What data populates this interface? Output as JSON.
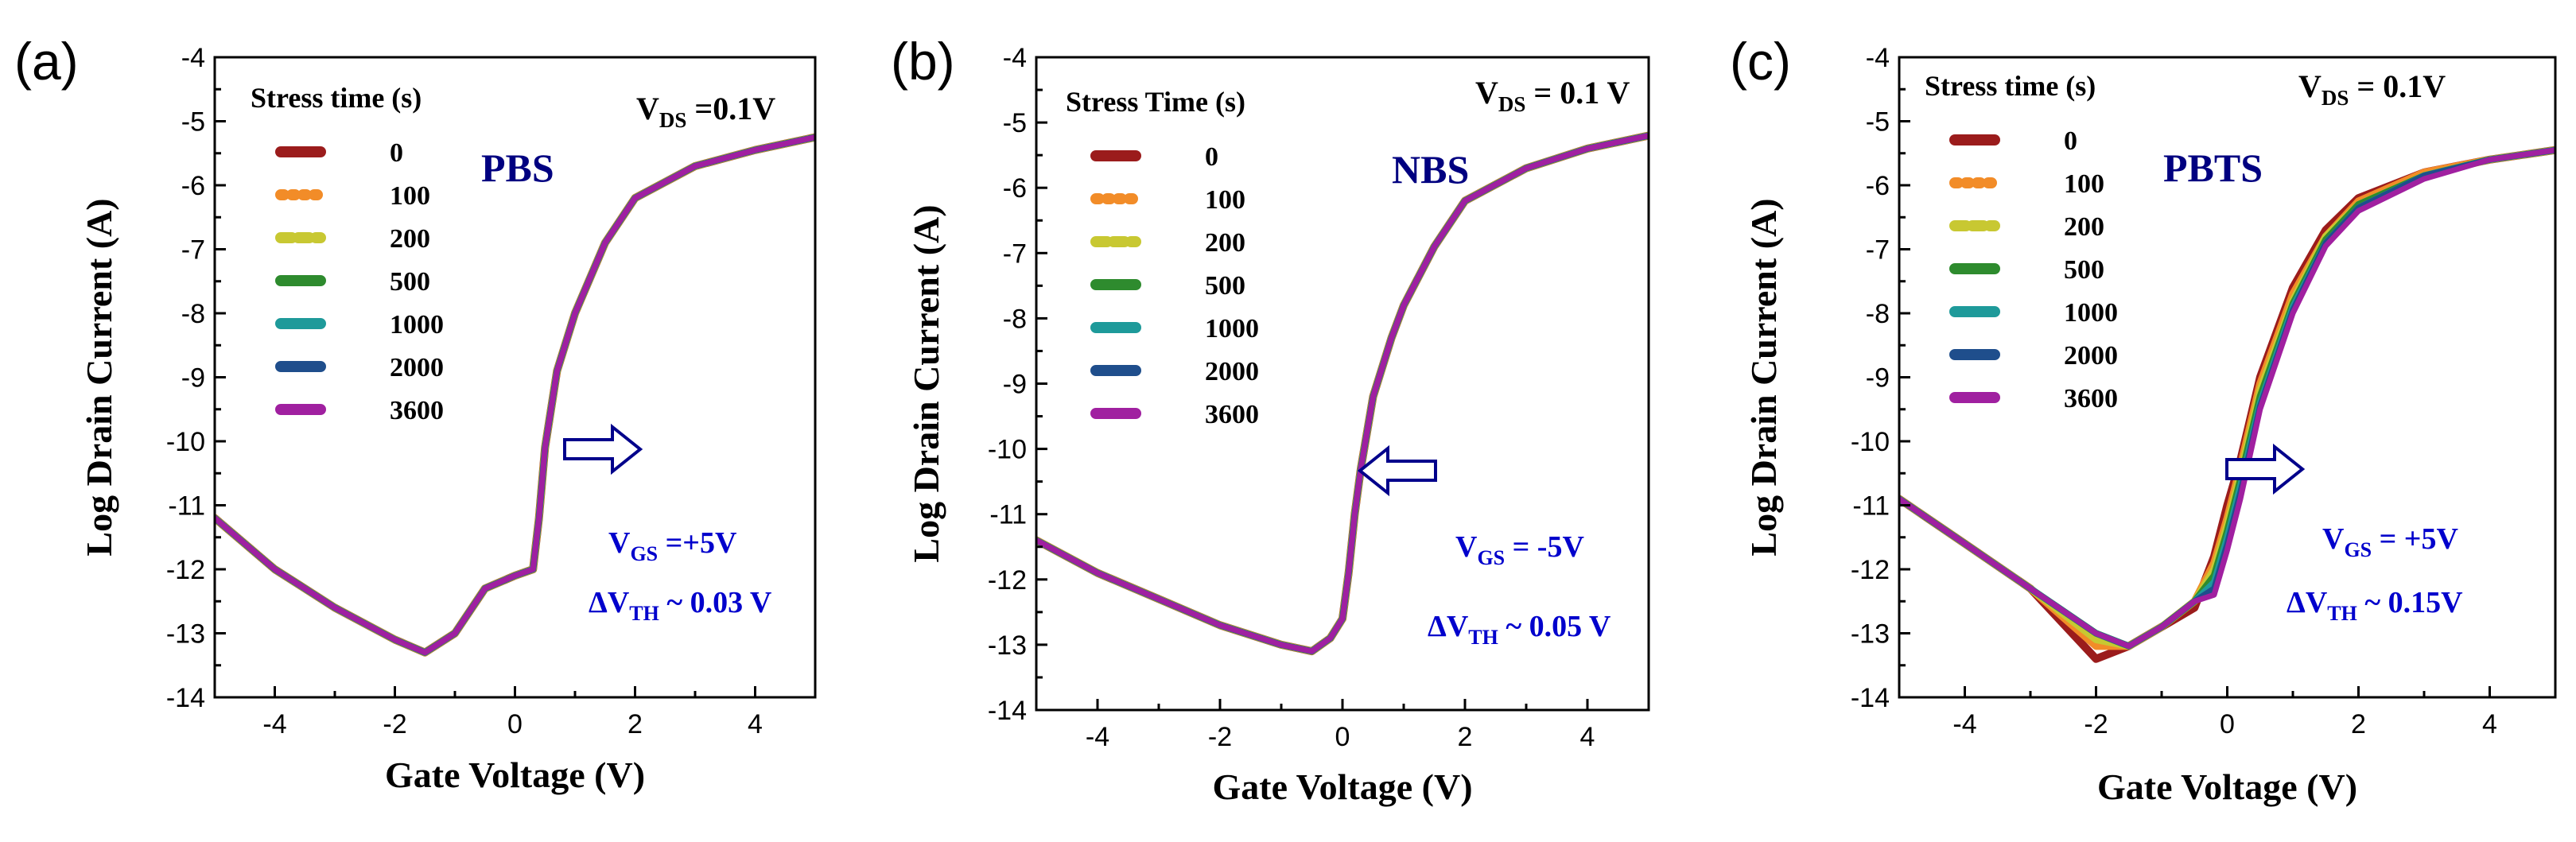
{
  "figure": {
    "panels": [
      {
        "letter": "(a)",
        "stress_name": "PBS",
        "vds_main": "V",
        "vds_sub": "DS",
        "vds_value": " =0.1V",
        "legend_title": "Stress time (s)",
        "vgs_main": "V",
        "vgs_sub": "GS",
        "vgs_value": " =+5V",
        "dvth_main": "ΔV",
        "dvth_sub": "TH",
        "dvth_value": " ~ 0.03 V",
        "shift_direction": "right"
      },
      {
        "letter": "(b)",
        "stress_name": "NBS",
        "vds_main": "V",
        "vds_sub": "DS",
        "vds_value": " = 0.1 V",
        "legend_title": "Stress Time (s)",
        "vgs_main": "V",
        "vgs_sub": "GS",
        "vgs_value": " = -5V",
        "dvth_main": "ΔV",
        "dvth_sub": "TH",
        "dvth_value": " ~ 0.05 V",
        "shift_direction": "left"
      },
      {
        "letter": "(c)",
        "stress_name": "PBTS",
        "vds_main": "V",
        "vds_sub": "DS",
        "vds_value": " = 0.1V",
        "legend_title": "Stress time (s)",
        "vgs_main": "V",
        "vgs_sub": "GS",
        "vgs_value": " = +5V",
        "dvth_main": "ΔV",
        "dvth_sub": "TH",
        "dvth_value": " ~ 0.15V",
        "shift_direction": "right"
      }
    ]
  },
  "colors": {
    "series": [
      "#9b1c1c",
      "#f28c28",
      "#c8c832",
      "#2e8b2e",
      "#1e9a9a",
      "#1f4e8c",
      "#a020a0"
    ],
    "annotation": "#0000cc",
    "stress_name": "#000080",
    "arrow": "#00008b"
  },
  "chart_data": [
    {
      "type": "line",
      "title": "PBS",
      "xlabel": "Gate Voltage (V)",
      "ylabel": "Log Drain Current (A)",
      "xlim": [
        -5,
        5
      ],
      "ylim": [
        -14,
        -4
      ],
      "xticks": [
        -4,
        -2,
        0,
        2,
        4
      ],
      "yticks": [
        -4,
        -5,
        -6,
        -7,
        -8,
        -9,
        -10,
        -11,
        -12,
        -13,
        -14
      ],
      "legend_title": "Stress time (s)",
      "series_names": [
        "0",
        "100",
        "200",
        "500",
        "1000",
        "2000",
        "3600"
      ],
      "x": [
        -5,
        -4,
        -3,
        -2,
        -1.5,
        -1,
        -0.5,
        0,
        0.3,
        0.4,
        0.5,
        0.7,
        1,
        1.5,
        2,
        3,
        4,
        5
      ],
      "series": [
        {
          "name": "0",
          "values": [
            -11.2,
            -12.0,
            -12.6,
            -13.1,
            -13.3,
            -13.0,
            -12.3,
            -12.1,
            -12.0,
            -11.2,
            -10.1,
            -8.9,
            -8.0,
            -6.9,
            -6.2,
            -5.7,
            -5.45,
            -5.25
          ]
        },
        {
          "name": "100",
          "values": [
            -11.2,
            -12.0,
            -12.6,
            -13.1,
            -13.3,
            -13.0,
            -12.3,
            -12.1,
            -12.0,
            -11.2,
            -10.1,
            -8.9,
            -8.0,
            -6.9,
            -6.2,
            -5.7,
            -5.45,
            -5.25
          ]
        },
        {
          "name": "200",
          "values": [
            -11.2,
            -12.0,
            -12.6,
            -13.1,
            -13.3,
            -13.0,
            -12.3,
            -12.1,
            -12.0,
            -11.2,
            -10.1,
            -8.9,
            -8.0,
            -6.9,
            -6.2,
            -5.7,
            -5.45,
            -5.25
          ]
        },
        {
          "name": "500",
          "values": [
            -11.2,
            -12.0,
            -12.6,
            -13.1,
            -13.3,
            -13.0,
            -12.3,
            -12.1,
            -12.0,
            -11.2,
            -10.1,
            -8.9,
            -8.0,
            -6.9,
            -6.2,
            -5.7,
            -5.45,
            -5.25
          ]
        },
        {
          "name": "1000",
          "values": [
            -11.2,
            -12.0,
            -12.6,
            -13.1,
            -13.3,
            -13.0,
            -12.3,
            -12.1,
            -12.0,
            -11.2,
            -10.1,
            -8.9,
            -8.0,
            -6.9,
            -6.2,
            -5.7,
            -5.45,
            -5.25
          ]
        },
        {
          "name": "2000",
          "values": [
            -11.2,
            -12.0,
            -12.6,
            -13.1,
            -13.3,
            -13.0,
            -12.3,
            -12.1,
            -12.0,
            -11.2,
            -10.1,
            -8.9,
            -8.0,
            -6.9,
            -6.2,
            -5.7,
            -5.45,
            -5.25
          ]
        },
        {
          "name": "3600",
          "values": [
            -11.2,
            -12.0,
            -12.6,
            -13.1,
            -13.3,
            -13.0,
            -12.3,
            -12.1,
            -12.0,
            -11.2,
            -10.1,
            -8.9,
            -8.0,
            -6.9,
            -6.2,
            -5.7,
            -5.45,
            -5.25
          ]
        }
      ]
    },
    {
      "type": "line",
      "title": "NBS",
      "xlabel": "Gate Voltage (V)",
      "ylabel": "Log Drain Current (A)",
      "xlim": [
        -5,
        5
      ],
      "ylim": [
        -14,
        -4
      ],
      "xticks": [
        -4,
        -2,
        0,
        2,
        4
      ],
      "yticks": [
        -4,
        -5,
        -6,
        -7,
        -8,
        -9,
        -10,
        -11,
        -12,
        -13,
        -14
      ],
      "legend_title": "Stress Time (s)",
      "series_names": [
        "0",
        "100",
        "200",
        "500",
        "1000",
        "2000",
        "3600"
      ],
      "x": [
        -5,
        -4,
        -3,
        -2,
        -1,
        -0.5,
        -0.2,
        0,
        0.1,
        0.2,
        0.3,
        0.5,
        0.8,
        1,
        1.5,
        2,
        3,
        4,
        5
      ],
      "series": [
        {
          "name": "0",
          "values": [
            -11.4,
            -11.9,
            -12.3,
            -12.7,
            -13.0,
            -13.1,
            -12.9,
            -12.6,
            -11.9,
            -11.0,
            -10.3,
            -9.2,
            -8.3,
            -7.8,
            -6.9,
            -6.2,
            -5.7,
            -5.4,
            -5.2
          ]
        },
        {
          "name": "100",
          "values": [
            -11.4,
            -11.9,
            -12.3,
            -12.7,
            -13.0,
            -13.1,
            -12.9,
            -12.6,
            -11.9,
            -11.0,
            -10.3,
            -9.2,
            -8.3,
            -7.8,
            -6.9,
            -6.2,
            -5.7,
            -5.4,
            -5.2
          ]
        },
        {
          "name": "200",
          "values": [
            -11.4,
            -11.9,
            -12.3,
            -12.7,
            -13.0,
            -13.1,
            -12.9,
            -12.6,
            -11.9,
            -11.0,
            -10.3,
            -9.2,
            -8.3,
            -7.8,
            -6.9,
            -6.2,
            -5.7,
            -5.4,
            -5.2
          ]
        },
        {
          "name": "500",
          "values": [
            -11.4,
            -11.9,
            -12.3,
            -12.7,
            -13.0,
            -13.1,
            -12.9,
            -12.6,
            -11.9,
            -11.0,
            -10.3,
            -9.2,
            -8.3,
            -7.8,
            -6.9,
            -6.2,
            -5.7,
            -5.4,
            -5.2
          ]
        },
        {
          "name": "1000",
          "values": [
            -11.4,
            -11.9,
            -12.3,
            -12.7,
            -13.0,
            -13.1,
            -12.9,
            -12.6,
            -11.9,
            -11.0,
            -10.3,
            -9.2,
            -8.3,
            -7.8,
            -6.9,
            -6.2,
            -5.7,
            -5.4,
            -5.2
          ]
        },
        {
          "name": "2000",
          "values": [
            -11.4,
            -11.9,
            -12.3,
            -12.7,
            -13.0,
            -13.1,
            -12.9,
            -12.6,
            -11.9,
            -11.0,
            -10.3,
            -9.2,
            -8.3,
            -7.8,
            -6.9,
            -6.2,
            -5.7,
            -5.4,
            -5.2
          ]
        },
        {
          "name": "3600",
          "values": [
            -11.4,
            -11.9,
            -12.3,
            -12.7,
            -13.0,
            -13.1,
            -12.9,
            -12.6,
            -11.9,
            -11.0,
            -10.3,
            -9.2,
            -8.3,
            -7.8,
            -6.9,
            -6.2,
            -5.7,
            -5.4,
            -5.2
          ]
        }
      ]
    },
    {
      "type": "line",
      "title": "PBTS",
      "xlabel": "Gate Voltage (V)",
      "ylabel": "Log Drain Current (A)",
      "xlim": [
        -5,
        5
      ],
      "ylim": [
        -14,
        -4
      ],
      "xticks": [
        -4,
        -2,
        0,
        2,
        4
      ],
      "yticks": [
        -4,
        -5,
        -6,
        -7,
        -8,
        -9,
        -10,
        -11,
        -12,
        -13,
        -14
      ],
      "legend_title": "Stress time (s)",
      "series_names": [
        "0",
        "100",
        "200",
        "500",
        "1000",
        "2000",
        "3600"
      ],
      "x": [
        -5,
        -4,
        -3,
        -2,
        -1.5,
        -1,
        -0.5,
        -0.2,
        0,
        0.2,
        0.5,
        1,
        1.5,
        2,
        3,
        4,
        5
      ],
      "series": [
        {
          "name": "0",
          "values": [
            -10.9,
            -11.6,
            -12.3,
            -13.4,
            -13.2,
            -12.9,
            -12.6,
            -11.8,
            -11.0,
            -10.3,
            -9.0,
            -7.6,
            -6.7,
            -6.2,
            -5.8,
            -5.6,
            -5.45
          ]
        },
        {
          "name": "100",
          "values": [
            -10.9,
            -11.6,
            -12.3,
            -13.2,
            -13.2,
            -12.9,
            -12.5,
            -11.9,
            -11.2,
            -10.4,
            -9.1,
            -7.7,
            -6.8,
            -6.25,
            -5.8,
            -5.6,
            -5.45
          ]
        },
        {
          "name": "200",
          "values": [
            -10.9,
            -11.6,
            -12.3,
            -13.1,
            -13.2,
            -12.9,
            -12.5,
            -12.0,
            -11.3,
            -10.5,
            -9.2,
            -7.8,
            -6.8,
            -6.3,
            -5.85,
            -5.6,
            -5.45
          ]
        },
        {
          "name": "500",
          "values": [
            -10.9,
            -11.6,
            -12.3,
            -13.0,
            -13.2,
            -12.9,
            -12.5,
            -12.1,
            -11.4,
            -10.6,
            -9.3,
            -7.85,
            -6.85,
            -6.3,
            -5.85,
            -5.6,
            -5.45
          ]
        },
        {
          "name": "1000",
          "values": [
            -10.9,
            -11.6,
            -12.3,
            -13.0,
            -13.2,
            -12.9,
            -12.5,
            -12.2,
            -11.5,
            -10.7,
            -9.4,
            -7.9,
            -6.9,
            -6.35,
            -5.85,
            -5.6,
            -5.45
          ]
        },
        {
          "name": "2000",
          "values": [
            -10.9,
            -11.6,
            -12.3,
            -13.0,
            -13.2,
            -12.9,
            -12.5,
            -12.3,
            -11.6,
            -10.8,
            -9.45,
            -7.95,
            -6.9,
            -6.35,
            -5.85,
            -5.6,
            -5.45
          ]
        },
        {
          "name": "3600",
          "values": [
            -10.9,
            -11.6,
            -12.3,
            -13.0,
            -13.2,
            -12.9,
            -12.5,
            -12.4,
            -11.7,
            -10.9,
            -9.5,
            -8.0,
            -6.95,
            -6.4,
            -5.9,
            -5.6,
            -5.45
          ]
        }
      ]
    }
  ]
}
